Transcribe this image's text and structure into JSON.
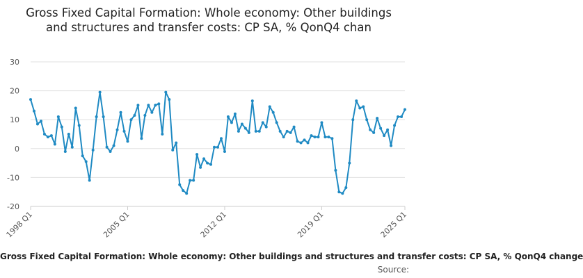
{
  "chart_data": {
    "type": "line",
    "title": "Gross Fixed Capital Formation: Whole economy: Other buildings and structures and transfer costs: CP SA, % QonQ4 chan",
    "series_name": "Gross Fixed Capital Formation: Whole economy: Other buildings and structures and transfer costs: CP SA, % QonQ4 change",
    "source_label": "Source:",
    "ylim": [
      -20,
      30
    ],
    "yticks": [
      -20,
      -10,
      0,
      10,
      20,
      30
    ],
    "x_tick_labels": [
      "1998 Q1",
      "2005 Q1",
      "2012 Q1",
      "2019 Q1",
      "2025 Q1"
    ],
    "x_tick_index": [
      0,
      28,
      56,
      84,
      108
    ],
    "color": "#1f8ac3",
    "grid": "horizontal",
    "start": "1998 Q1",
    "end": "2025 Q1",
    "values": [
      17,
      13,
      8.5,
      9.5,
      5,
      4,
      4.5,
      1.5,
      11,
      7.5,
      -1,
      5,
      0.5,
      14,
      8,
      -2.5,
      -4.5,
      -11,
      -0.5,
      11,
      19.5,
      11,
      0.5,
      -1,
      1,
      6.5,
      12.5,
      6,
      2.5,
      10,
      11.5,
      15,
      3.5,
      11.5,
      15,
      12.5,
      15,
      15.5,
      5,
      19.5,
      17,
      -0.5,
      2,
      -12.5,
      -14.5,
      -15.5,
      -11,
      -11,
      -2,
      -6.5,
      -3.5,
      -5,
      -5.5,
      0.5,
      0.5,
      3.5,
      -1,
      11,
      9,
      12,
      6,
      8.5,
      7,
      5.5,
      16.5,
      6,
      6,
      9,
      7.5,
      14.5,
      12.5,
      9,
      6,
      4,
      6,
      5.5,
      7.5,
      2.5,
      2,
      3,
      2,
      4.5,
      4,
      4,
      9,
      4,
      4,
      3.5,
      -7.5,
      -15,
      -15.5,
      -13.5,
      -5,
      10,
      16.5,
      14,
      14.5,
      10,
      6.5,
      5.5,
      10.5,
      7,
      4.5,
      6.5,
      1,
      8,
      11,
      11,
      13.5
    ]
  }
}
